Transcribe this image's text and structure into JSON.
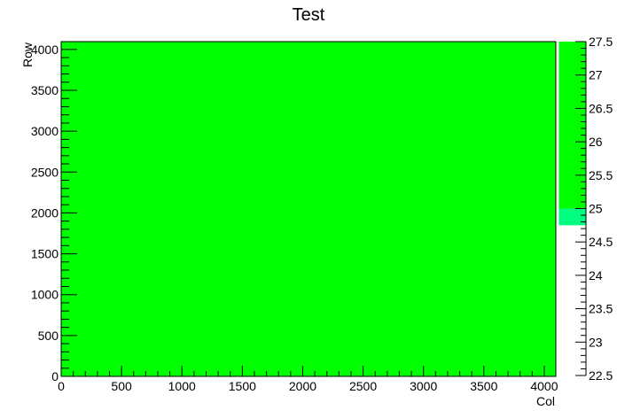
{
  "chart_data": {
    "type": "heatmap",
    "title": "Test",
    "xlabel": "Col",
    "ylabel": "Row",
    "xlim": [
      0,
      4096
    ],
    "ylim": [
      0,
      4096
    ],
    "zlim": [
      22.5,
      27.5
    ],
    "x_ticks": [
      0,
      500,
      1000,
      1500,
      2000,
      2500,
      3000,
      3500,
      4000
    ],
    "y_ticks": [
      0,
      500,
      1000,
      1500,
      2000,
      2500,
      3000,
      3500,
      4000
    ],
    "z_ticks": [
      22.5,
      23,
      23.5,
      24,
      24.5,
      25,
      25.5,
      26,
      26.5,
      27,
      27.5
    ],
    "fill_value": 27,
    "fill_color": "#00ff00",
    "palette": [
      {
        "from": 24.75,
        "to": 25.0,
        "color": "#00ff80"
      },
      {
        "from": 25.0,
        "to": 27.5,
        "color": "#00ff00"
      }
    ]
  }
}
